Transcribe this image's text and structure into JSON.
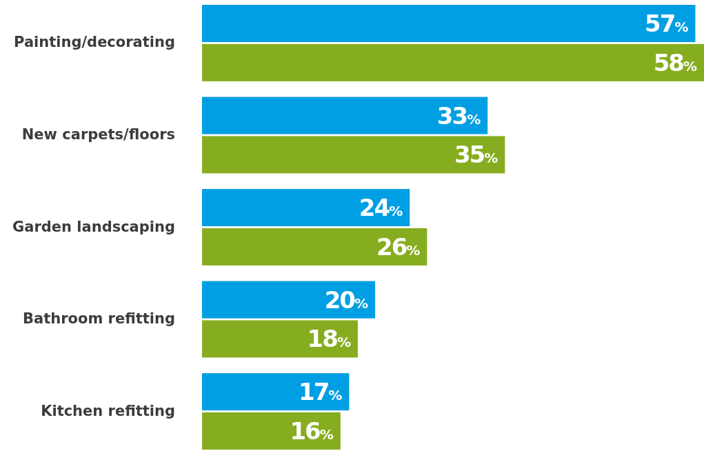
{
  "chart_data": {
    "type": "bar",
    "orientation": "horizontal",
    "categories": [
      "Painting/decorating",
      "New carpets/floors",
      "Garden landscaping",
      "Bathroom refitting",
      "Kitchen refitting"
    ],
    "series": [
      {
        "color": "#009fe3",
        "values": [
          57,
          33,
          24,
          20,
          17
        ],
        "value_labels": [
          "57%",
          "33%",
          "24%",
          "20%",
          "17%"
        ]
      },
      {
        "color": "#86ad1f",
        "values": [
          58,
          35,
          26,
          18,
          16
        ],
        "value_labels": [
          "58%",
          "35%",
          "26%",
          "18%",
          "16%"
        ]
      }
    ]
  }
}
